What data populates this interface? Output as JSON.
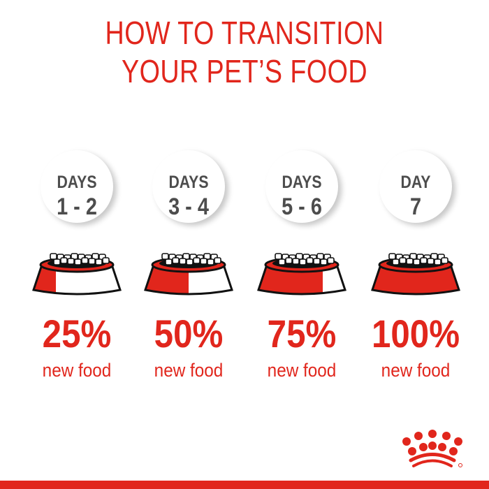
{
  "title": {
    "line1": "HOW TO TRANSITION",
    "line2": "YOUR PET’S FOOD"
  },
  "steps": [
    {
      "days_label": "DAYS",
      "days": "1 - 2",
      "percent": "25%",
      "caption": "new food",
      "new_food_fraction": 0.25
    },
    {
      "days_label": "DAYS",
      "days": "3 - 4",
      "percent": "50%",
      "caption": "new food",
      "new_food_fraction": 0.5
    },
    {
      "days_label": "DAYS",
      "days": "5 - 6",
      "percent": "75%",
      "caption": "new food",
      "new_food_fraction": 0.75
    },
    {
      "days_label": "DAY",
      "days": "7",
      "percent": "100%",
      "caption": "new food",
      "new_food_fraction": 1.0
    }
  ],
  "colors": {
    "brand_red": "#e1261c",
    "text_gray": "#4d4d4d"
  },
  "logo": {
    "name": "royal-canin-crown-logo"
  }
}
